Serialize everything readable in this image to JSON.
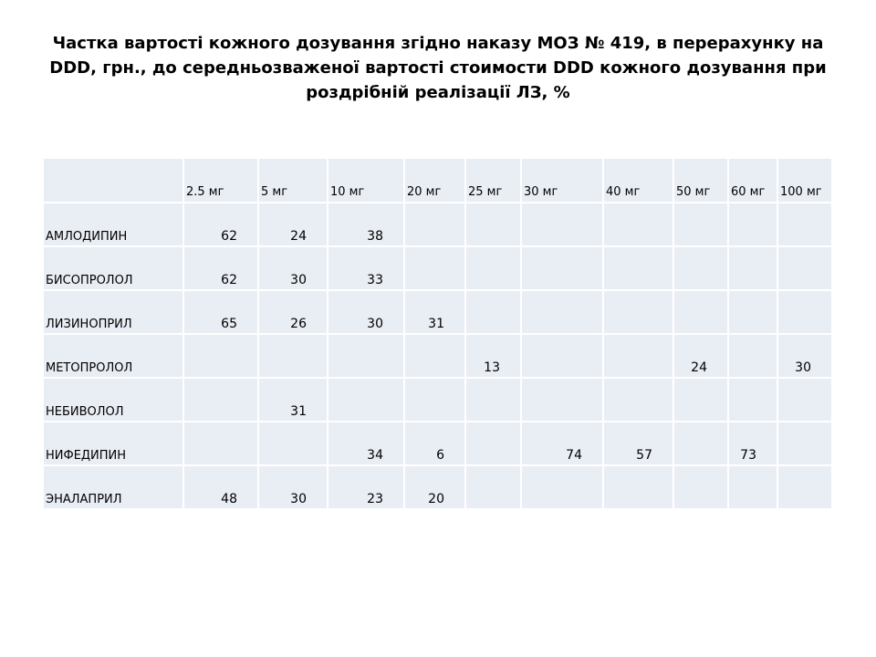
{
  "slide": {
    "title": "Частка вартості кожного дозування згідно наказу  МОЗ № 419, в перерахунку на DDD, грн., до середньозваженої вартості стоимости DDD кожного дозування при роздрібній реалізації ЛЗ, %"
  },
  "table": {
    "corner": "",
    "columns": [
      "2.5 мг",
      "5 мг",
      "10 мг",
      "20 мг",
      "25 мг",
      "30 мг",
      "40 мг",
      "50 мг",
      "60 мг",
      "100 мг"
    ],
    "rows": [
      {
        "name": "АМЛОДИПИН",
        "cells": [
          "62",
          "24",
          "38",
          "",
          "",
          "",
          "",
          "",
          "",
          ""
        ]
      },
      {
        "name": "БИСОПРОЛОЛ",
        "cells": [
          "62",
          "30",
          "33",
          "",
          "",
          "",
          "",
          "",
          "",
          ""
        ]
      },
      {
        "name": "ЛИЗИНОПРИЛ",
        "cells": [
          "65",
          "26",
          "30",
          "31",
          "",
          "",
          "",
          "",
          "",
          ""
        ]
      },
      {
        "name": "МЕТОПРОЛОЛ",
        "cells": [
          "",
          "",
          "",
          "",
          "13",
          "",
          "",
          "24",
          "",
          "30"
        ]
      },
      {
        "name": "НЕБИВОЛОЛ",
        "cells": [
          "",
          "31",
          "",
          "",
          "",
          "",
          "",
          "",
          "",
          ""
        ]
      },
      {
        "name": "НИФЕДИПИН",
        "cells": [
          "",
          "",
          "34",
          "6",
          "",
          "74",
          "57",
          "",
          "73",
          ""
        ]
      },
      {
        "name": "ЭНАЛАПРИЛ",
        "cells": [
          "48",
          "30",
          "23",
          "20",
          "",
          "",
          "",
          "",
          "",
          ""
        ]
      }
    ]
  }
}
